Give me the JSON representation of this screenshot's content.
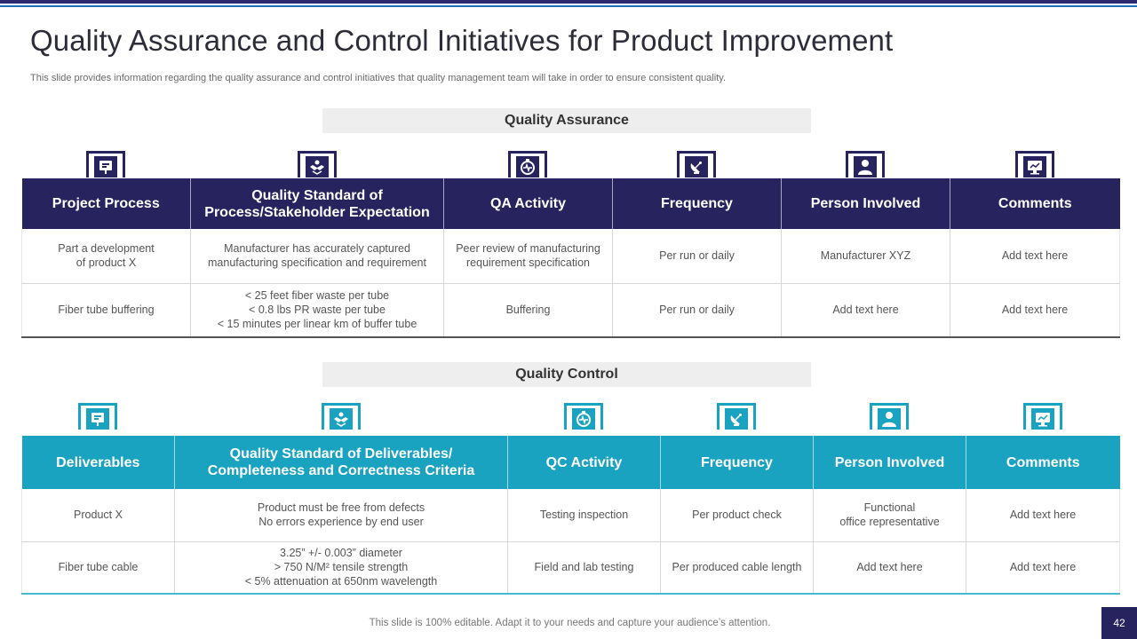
{
  "title": "Quality Assurance and Control Initiatives for Product Improvement",
  "subtitle": "This slide provides information regarding the quality assurance and control initiatives that quality management team will take in order to ensure consistent quality.",
  "colors": {
    "qa_header": "#26235f",
    "qc_header": "#1aa3c1",
    "qa_icon": "#26235f",
    "qc_icon": "#1aa3c1"
  },
  "qa": {
    "label": "Quality Assurance",
    "icons": [
      "presentation-icon",
      "handshake-icon",
      "stopwatch-icon",
      "satellite-dish-icon",
      "person-icon",
      "monitor-chart-icon"
    ],
    "headers": [
      [
        "Project Process"
      ],
      [
        "Quality  Standard of",
        "Process/Stakeholder Expectation"
      ],
      [
        "QA Activity"
      ],
      [
        "Frequency"
      ],
      [
        "Person Involved"
      ],
      [
        "Comments"
      ]
    ],
    "rows": [
      [
        [
          "Part a development",
          "of product X"
        ],
        [
          "Manufacturer  has accurately captured",
          "manufacturing  specification and requirement"
        ],
        [
          "Peer review  of manufacturing",
          "requirement specification"
        ],
        [
          "Per run  or daily"
        ],
        [
          "Manufacturer  XYZ"
        ],
        [
          "Add text here"
        ]
      ],
      [
        [
          "Fiber tube buffering"
        ],
        [
          "< 25  feet fiber waste per tube",
          "< 0.8 lbs PR waste per tube",
          "< 15  minutes per linear km of buffer  tube"
        ],
        [
          "Buffering"
        ],
        [
          "Per run  or daily"
        ],
        [
          "Add text here"
        ],
        [
          "Add text here"
        ]
      ]
    ]
  },
  "qc": {
    "label": "Quality Control",
    "icons": [
      "presentation-icon",
      "handshake-icon",
      "stopwatch-icon",
      "satellite-dish-icon",
      "person-icon",
      "monitor-chart-icon"
    ],
    "headers": [
      [
        "Deliverables"
      ],
      [
        "Quality  Standard of Deliverables/",
        "Completeness and Correctness Criteria"
      ],
      [
        "QC Activity"
      ],
      [
        "Frequency"
      ],
      [
        "Person Involved"
      ],
      [
        "Comments"
      ]
    ],
    "rows": [
      [
        [
          "Product X"
        ],
        [
          "Product must be free  from defects",
          "No errors  experience  by end user"
        ],
        [
          "Testing inspection"
        ],
        [
          "Per product  check"
        ],
        [
          "Functional",
          "office representative"
        ],
        [
          "Add text here"
        ]
      ],
      [
        [
          "Fiber tube cable"
        ],
        [
          "3.25” +/- 0.003”  diameter",
          "> 750 N/M² tensile strength",
          "< 5% attenuation at 650nm wavelength"
        ],
        [
          "Field and lab testing"
        ],
        [
          "Per produced cable length"
        ],
        [
          "Add text here"
        ],
        [
          "Add text here"
        ]
      ]
    ]
  },
  "footer": "This slide is 100% editable. Adapt it to your needs and capture your audience’s attention.",
  "page_number": "42"
}
